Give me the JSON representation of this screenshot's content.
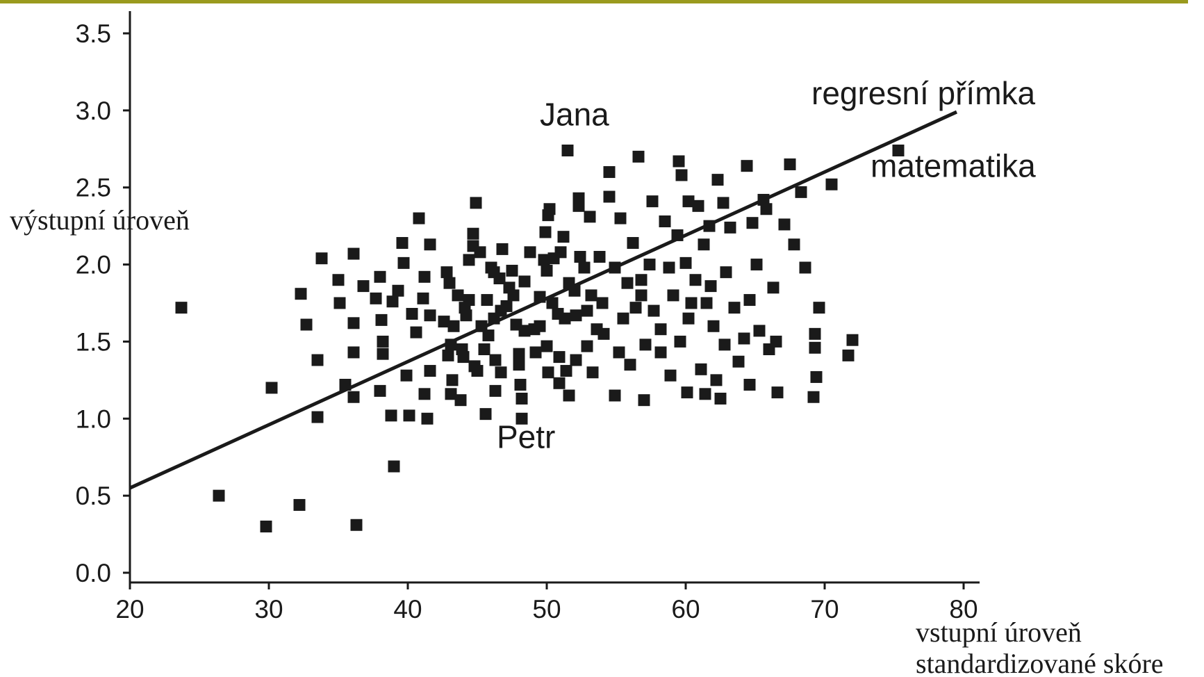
{
  "accent_color": "#9a9a1e",
  "chart_data": {
    "type": "scatter",
    "title": "",
    "xlabel": "vstupní úroveň",
    "xlabel2": "standardizované skóre",
    "ylabel": "výstupní úroveň",
    "xlim": [
      20,
      80
    ],
    "ylim": [
      0,
      3.5
    ],
    "xticks": [
      "20",
      "30",
      "40",
      "50",
      "60",
      "70",
      "80"
    ],
    "yticks": [
      "0.0",
      "0.5",
      "1.0",
      "1.5",
      "2.0",
      "2.5",
      "3.0",
      "3.5"
    ],
    "grid": false,
    "marker_color": "#1a1a1a",
    "regression_line": {
      "label": "regresní přímka",
      "x": [
        20,
        79.5
      ],
      "y": [
        0.55,
        2.99
      ]
    },
    "annotations": [
      {
        "text": "Jana",
        "x": 51.5,
        "y": 2.73
      },
      {
        "text": "Petr",
        "x": 48.0,
        "y": 1.0
      },
      {
        "text": "matematika",
        "x": 75.3,
        "y": 2.74
      }
    ],
    "points": [
      [
        23.7,
        1.72
      ],
      [
        26.4,
        0.5
      ],
      [
        29.8,
        0.3
      ],
      [
        30.2,
        1.2
      ],
      [
        32.2,
        0.44
      ],
      [
        32.3,
        1.81
      ],
      [
        32.7,
        1.61
      ],
      [
        33.5,
        1.38
      ],
      [
        33.5,
        1.01
      ],
      [
        33.8,
        2.04
      ],
      [
        35.0,
        1.9
      ],
      [
        35.1,
        1.75
      ],
      [
        35.5,
        1.22
      ],
      [
        36.1,
        2.07
      ],
      [
        36.1,
        1.62
      ],
      [
        36.1,
        1.43
      ],
      [
        36.1,
        1.14
      ],
      [
        36.3,
        0.31
      ],
      [
        36.8,
        1.86
      ],
      [
        37.7,
        1.78
      ],
      [
        38.0,
        1.92
      ],
      [
        38.1,
        1.64
      ],
      [
        38.2,
        1.5
      ],
      [
        38.2,
        1.42
      ],
      [
        38.0,
        1.18
      ],
      [
        38.8,
        1.02
      ],
      [
        38.9,
        1.76
      ],
      [
        39.0,
        0.69
      ],
      [
        39.3,
        1.83
      ],
      [
        39.6,
        2.14
      ],
      [
        39.7,
        2.01
      ],
      [
        39.9,
        1.28
      ],
      [
        40.1,
        1.02
      ],
      [
        40.3,
        1.68
      ],
      [
        40.6,
        1.56
      ],
      [
        40.8,
        2.3
      ],
      [
        41.1,
        1.78
      ],
      [
        41.2,
        1.92
      ],
      [
        41.2,
        1.16
      ],
      [
        41.4,
        1.0
      ],
      [
        41.6,
        1.67
      ],
      [
        41.6,
        1.31
      ],
      [
        41.6,
        2.13
      ],
      [
        42.6,
        1.63
      ],
      [
        42.8,
        1.95
      ],
      [
        42.9,
        1.41
      ],
      [
        43.0,
        1.88
      ],
      [
        43.1,
        1.48
      ],
      [
        43.1,
        1.16
      ],
      [
        43.2,
        1.25
      ],
      [
        43.3,
        1.6
      ],
      [
        43.6,
        1.8
      ],
      [
        43.8,
        1.12
      ],
      [
        43.9,
        1.45
      ],
      [
        44.0,
        1.4
      ],
      [
        44.1,
        1.72
      ],
      [
        44.2,
        1.67
      ],
      [
        44.4,
        2.03
      ],
      [
        44.4,
        1.77
      ],
      [
        44.7,
        2.2
      ],
      [
        44.7,
        2.12
      ],
      [
        44.8,
        1.34
      ],
      [
        44.9,
        2.4
      ],
      [
        45.0,
        1.31
      ],
      [
        45.2,
        2.08
      ],
      [
        45.3,
        1.6
      ],
      [
        45.5,
        1.45
      ],
      [
        45.8,
        1.54
      ],
      [
        45.6,
        1.03
      ],
      [
        45.7,
        1.77
      ],
      [
        46.0,
        1.98
      ],
      [
        46.2,
        1.95
      ],
      [
        46.2,
        1.65
      ],
      [
        46.3,
        1.38
      ],
      [
        46.3,
        1.18
      ],
      [
        46.6,
        1.91
      ],
      [
        46.7,
        1.7
      ],
      [
        46.7,
        1.3
      ],
      [
        46.8,
        2.1
      ],
      [
        47.1,
        1.73
      ],
      [
        47.3,
        1.85
      ],
      [
        47.5,
        1.96
      ],
      [
        47.6,
        1.8
      ],
      [
        47.8,
        1.61
      ],
      [
        48.0,
        1.42
      ],
      [
        48.0,
        1.35
      ],
      [
        48.1,
        1.22
      ],
      [
        48.2,
        1.13
      ],
      [
        48.2,
        1.0
      ],
      [
        48.4,
        1.57
      ],
      [
        48.4,
        1.89
      ],
      [
        48.8,
        2.08
      ],
      [
        49.1,
        1.58
      ],
      [
        49.2,
        1.43
      ],
      [
        49.5,
        1.6
      ],
      [
        49.5,
        1.79
      ],
      [
        49.8,
        2.03
      ],
      [
        49.9,
        2.21
      ],
      [
        50.0,
        1.96
      ],
      [
        50.0,
        1.47
      ],
      [
        50.1,
        1.3
      ],
      [
        50.1,
        2.32
      ],
      [
        50.2,
        2.36
      ],
      [
        50.4,
        1.75
      ],
      [
        50.5,
        2.04
      ],
      [
        50.8,
        1.68
      ],
      [
        50.9,
        1.4
      ],
      [
        50.9,
        1.23
      ],
      [
        51.0,
        2.08
      ],
      [
        51.2,
        2.18
      ],
      [
        51.3,
        1.65
      ],
      [
        51.4,
        1.31
      ],
      [
        51.5,
        2.74
      ],
      [
        51.6,
        1.88
      ],
      [
        51.6,
        1.15
      ],
      [
        52.0,
        1.83
      ],
      [
        52.1,
        1.67
      ],
      [
        52.1,
        1.38
      ],
      [
        52.3,
        2.43
      ],
      [
        52.3,
        2.38
      ],
      [
        52.4,
        2.05
      ],
      [
        52.7,
        1.98
      ],
      [
        52.9,
        1.7
      ],
      [
        52.9,
        1.47
      ],
      [
        53.1,
        2.31
      ],
      [
        53.2,
        1.8
      ],
      [
        53.3,
        1.3
      ],
      [
        53.6,
        1.58
      ],
      [
        53.8,
        2.05
      ],
      [
        54.0,
        1.75
      ],
      [
        54.1,
        1.55
      ],
      [
        54.5,
        2.44
      ],
      [
        54.5,
        2.6
      ],
      [
        54.9,
        1.15
      ],
      [
        54.9,
        1.98
      ],
      [
        55.2,
        1.43
      ],
      [
        55.3,
        2.3
      ],
      [
        55.5,
        1.65
      ],
      [
        55.8,
        1.88
      ],
      [
        56.0,
        1.35
      ],
      [
        56.2,
        2.14
      ],
      [
        56.4,
        1.72
      ],
      [
        56.6,
        2.7
      ],
      [
        56.8,
        1.9
      ],
      [
        56.8,
        1.8
      ],
      [
        57.0,
        1.12
      ],
      [
        57.1,
        1.48
      ],
      [
        57.4,
        2.0
      ],
      [
        57.6,
        2.41
      ],
      [
        57.7,
        1.7
      ],
      [
        58.2,
        1.58
      ],
      [
        58.2,
        1.43
      ],
      [
        58.5,
        2.28
      ],
      [
        58.8,
        1.98
      ],
      [
        58.9,
        1.28
      ],
      [
        59.1,
        1.8
      ],
      [
        59.4,
        2.19
      ],
      [
        59.5,
        2.67
      ],
      [
        59.6,
        1.5
      ],
      [
        59.7,
        2.58
      ],
      [
        60.0,
        2.01
      ],
      [
        60.1,
        1.17
      ],
      [
        60.2,
        2.41
      ],
      [
        60.2,
        1.65
      ],
      [
        60.4,
        1.75
      ],
      [
        60.7,
        1.9
      ],
      [
        60.9,
        2.38
      ],
      [
        61.1,
        1.32
      ],
      [
        61.3,
        2.13
      ],
      [
        61.4,
        1.16
      ],
      [
        61.5,
        1.75
      ],
      [
        61.7,
        2.25
      ],
      [
        61.8,
        1.86
      ],
      [
        62.0,
        1.6
      ],
      [
        62.2,
        1.25
      ],
      [
        62.3,
        2.55
      ],
      [
        62.5,
        1.13
      ],
      [
        62.7,
        2.4
      ],
      [
        62.8,
        1.48
      ],
      [
        62.9,
        1.95
      ],
      [
        63.2,
        2.24
      ],
      [
        63.5,
        1.72
      ],
      [
        63.8,
        1.37
      ],
      [
        64.2,
        1.52
      ],
      [
        64.4,
        2.64
      ],
      [
        64.6,
        1.77
      ],
      [
        64.6,
        1.22
      ],
      [
        64.8,
        2.27
      ],
      [
        65.1,
        2.0
      ],
      [
        65.3,
        1.57
      ],
      [
        65.6,
        2.42
      ],
      [
        65.8,
        2.36
      ],
      [
        66.0,
        1.45
      ],
      [
        66.3,
        1.85
      ],
      [
        66.5,
        1.5
      ],
      [
        66.6,
        1.17
      ],
      [
        67.1,
        2.26
      ],
      [
        67.5,
        2.65
      ],
      [
        67.8,
        2.13
      ],
      [
        68.3,
        2.47
      ],
      [
        68.6,
        1.98
      ],
      [
        69.3,
        1.55
      ],
      [
        69.3,
        1.46
      ],
      [
        69.4,
        1.27
      ],
      [
        69.2,
        1.14
      ],
      [
        69.6,
        1.72
      ],
      [
        70.5,
        2.52
      ],
      [
        71.7,
        1.41
      ],
      [
        72.0,
        1.51
      ],
      [
        75.3,
        2.74
      ]
    ]
  }
}
